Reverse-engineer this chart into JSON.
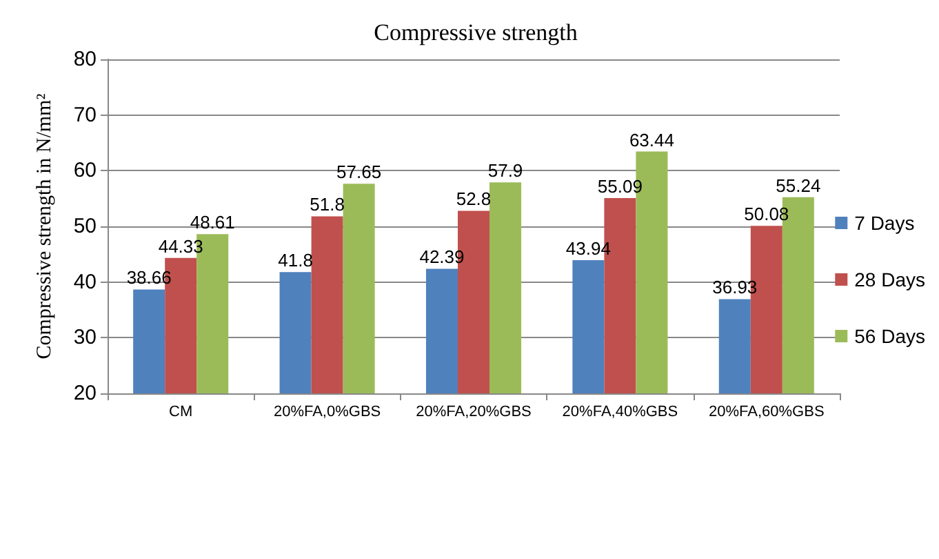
{
  "chart_data": {
    "type": "bar",
    "title": "Compressive strength",
    "ylabel": "Compressive strength in N/mm²",
    "categories": [
      "CM",
      "20%FA,0%GBS",
      "20%FA,20%GBS",
      "20%FA,40%GBS",
      "20%FA,60%GBS"
    ],
    "series": [
      {
        "name": "7 Days",
        "color": "#4f81bd",
        "values": [
          38.66,
          41.8,
          42.39,
          43.94,
          36.93
        ]
      },
      {
        "name": "28 Days",
        "color": "#c0504d",
        "values": [
          44.33,
          51.8,
          52.8,
          55.09,
          50.08
        ]
      },
      {
        "name": "56 Days",
        "color": "#9bbb59",
        "values": [
          48.61,
          57.65,
          57.9,
          63.44,
          55.24
        ]
      }
    ],
    "ylim": [
      20,
      80
    ],
    "yticks": [
      20,
      30,
      40,
      50,
      60,
      70,
      80
    ],
    "grid": "y",
    "legend": "right",
    "data_labels": true
  }
}
